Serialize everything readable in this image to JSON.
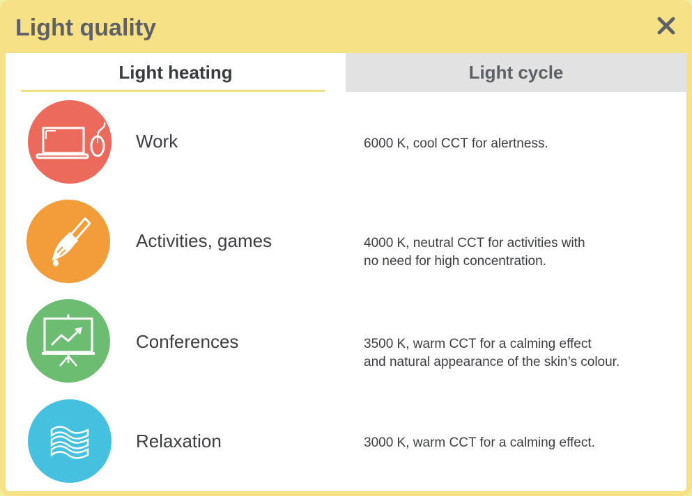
{
  "dialog": {
    "title": "Light quality",
    "close_label": "×"
  },
  "tabs": [
    {
      "label": "Light heating",
      "active": true
    },
    {
      "label": "Light cycle",
      "active": false
    }
  ],
  "rows": [
    {
      "label": "Work",
      "icon": "laptop-mouse-icon",
      "color": "#ec6a5c",
      "desc": [
        "6000 K, cool CCT for alertness."
      ]
    },
    {
      "label": "Activities, games",
      "icon": "paintbrush-icon",
      "color": "#f39d3a",
      "desc": [
        "4000 K, neutral CCT for activities with",
        "no need for high concentration."
      ]
    },
    {
      "label": "Conferences",
      "icon": "presentation-chart-icon",
      "color": "#6cbd72",
      "desc": [
        "3500 K, warm CCT for a calming effect",
        "and natural appearance of the skin’s colour."
      ]
    },
    {
      "label": "Relaxation",
      "icon": "waves-icon",
      "color": "#45c0de",
      "desc": [
        "3000 K, warm CCT for a calming effect."
      ]
    }
  ]
}
